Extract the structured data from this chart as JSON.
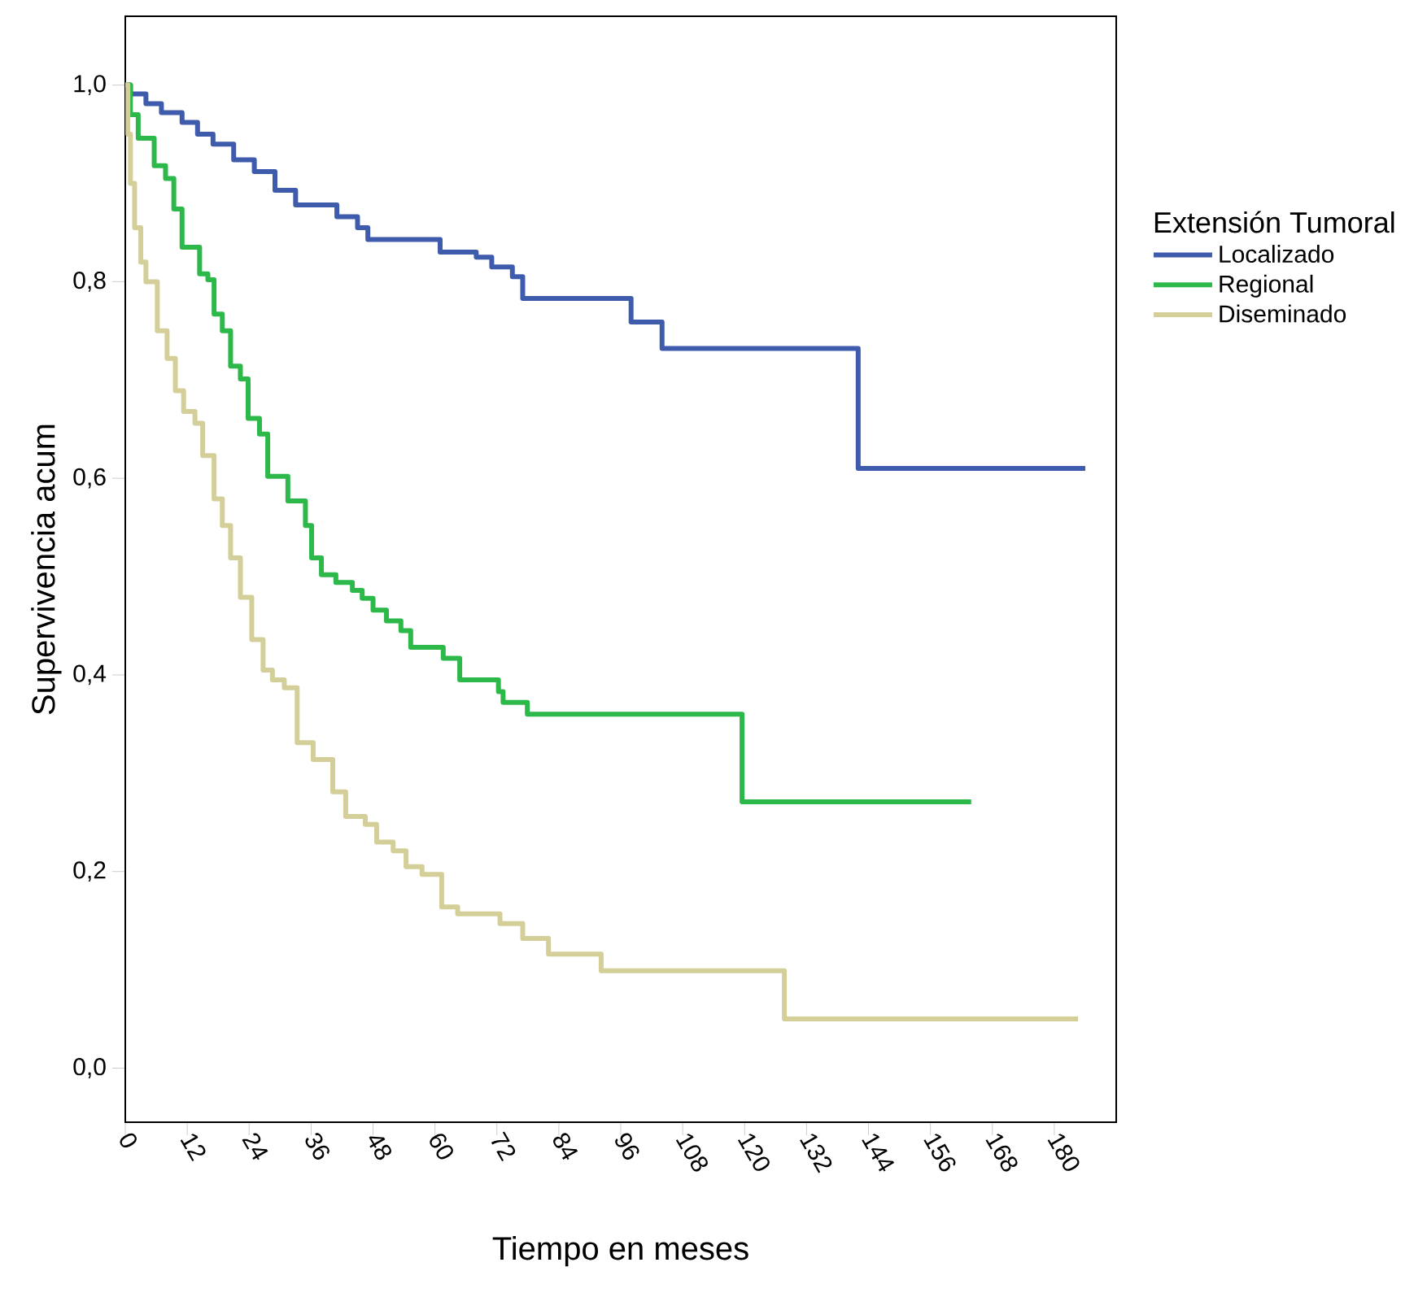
{
  "chart_data": {
    "type": "step",
    "xlabel": "Tiempo en meses",
    "ylabel": "Supervivencia acum",
    "legend_title": "Extensión Tumoral",
    "legend": "right",
    "xlim": [
      0,
      192
    ],
    "ylim": [
      -0.055,
      1.07
    ],
    "xticks": [
      0,
      12,
      24,
      36,
      48,
      60,
      72,
      84,
      96,
      108,
      120,
      132,
      144,
      156,
      168,
      180
    ],
    "yticks": [
      {
        "value": 0,
        "label": "0,0"
      },
      {
        "value": 0.2,
        "label": "0,2"
      },
      {
        "value": 0.4,
        "label": "0,4"
      },
      {
        "value": 0.6,
        "label": "0,6"
      },
      {
        "value": 0.8,
        "label": "0,8"
      },
      {
        "value": 1,
        "label": "1,0"
      }
    ],
    "series": [
      {
        "name": "Localizado",
        "color": "#3f5bab",
        "x": [
          0,
          1,
          4,
          7,
          11,
          14,
          17,
          21,
          25,
          29,
          33,
          41,
          45,
          47,
          61,
          68,
          71,
          75,
          77,
          98,
          104,
          142,
          186
        ],
        "values": [
          1.0,
          0.991,
          0.981,
          0.972,
          0.962,
          0.95,
          0.94,
          0.924,
          0.912,
          0.893,
          0.878,
          0.866,
          0.855,
          0.843,
          0.83,
          0.825,
          0.815,
          0.805,
          0.783,
          0.759,
          0.732,
          0.61,
          0.61
        ]
      },
      {
        "name": "Regional",
        "color": "#2db84a",
        "x": [
          0,
          1,
          2.5,
          5.6,
          7.8,
          9.4,
          11,
          14.4,
          16,
          17.2,
          18.8,
          20.4,
          22.3,
          23.8,
          26,
          27.6,
          31.5,
          34.9,
          36.1,
          38,
          40.8,
          44,
          45.9,
          48,
          50.6,
          53.4,
          55.3,
          61.6,
          64.8,
          72.3,
          73.2,
          77.9,
          119.5,
          163.9
        ],
        "values": [
          1.0,
          0.97,
          0.946,
          0.918,
          0.905,
          0.874,
          0.835,
          0.808,
          0.802,
          0.767,
          0.75,
          0.714,
          0.701,
          0.661,
          0.645,
          0.602,
          0.577,
          0.552,
          0.519,
          0.502,
          0.494,
          0.486,
          0.478,
          0.466,
          0.455,
          0.445,
          0.428,
          0.417,
          0.395,
          0.383,
          0.372,
          0.36,
          0.271,
          0.271
        ]
      },
      {
        "name": "Diseminado",
        "color": "#d4cf98",
        "x": [
          0,
          0.5,
          1,
          1.8,
          3,
          4,
          6.2,
          8.1,
          9.7,
          11.3,
          13.5,
          15,
          17.2,
          18.8,
          20.4,
          22.3,
          24.5,
          26.7,
          28.5,
          30.8,
          33.3,
          36.4,
          40.2,
          42.7,
          46.5,
          48.7,
          51.9,
          54.4,
          57.5,
          61.3,
          64.4,
          72.6,
          77,
          82,
          92.2,
          127.7,
          184.6
        ],
        "values": [
          1.0,
          0.95,
          0.9,
          0.855,
          0.82,
          0.8,
          0.75,
          0.722,
          0.689,
          0.668,
          0.656,
          0.623,
          0.579,
          0.552,
          0.519,
          0.479,
          0.436,
          0.405,
          0.395,
          0.387,
          0.331,
          0.314,
          0.281,
          0.256,
          0.248,
          0.23,
          0.221,
          0.205,
          0.197,
          0.164,
          0.157,
          0.147,
          0.132,
          0.116,
          0.099,
          0.05,
          0.05
        ]
      }
    ]
  }
}
